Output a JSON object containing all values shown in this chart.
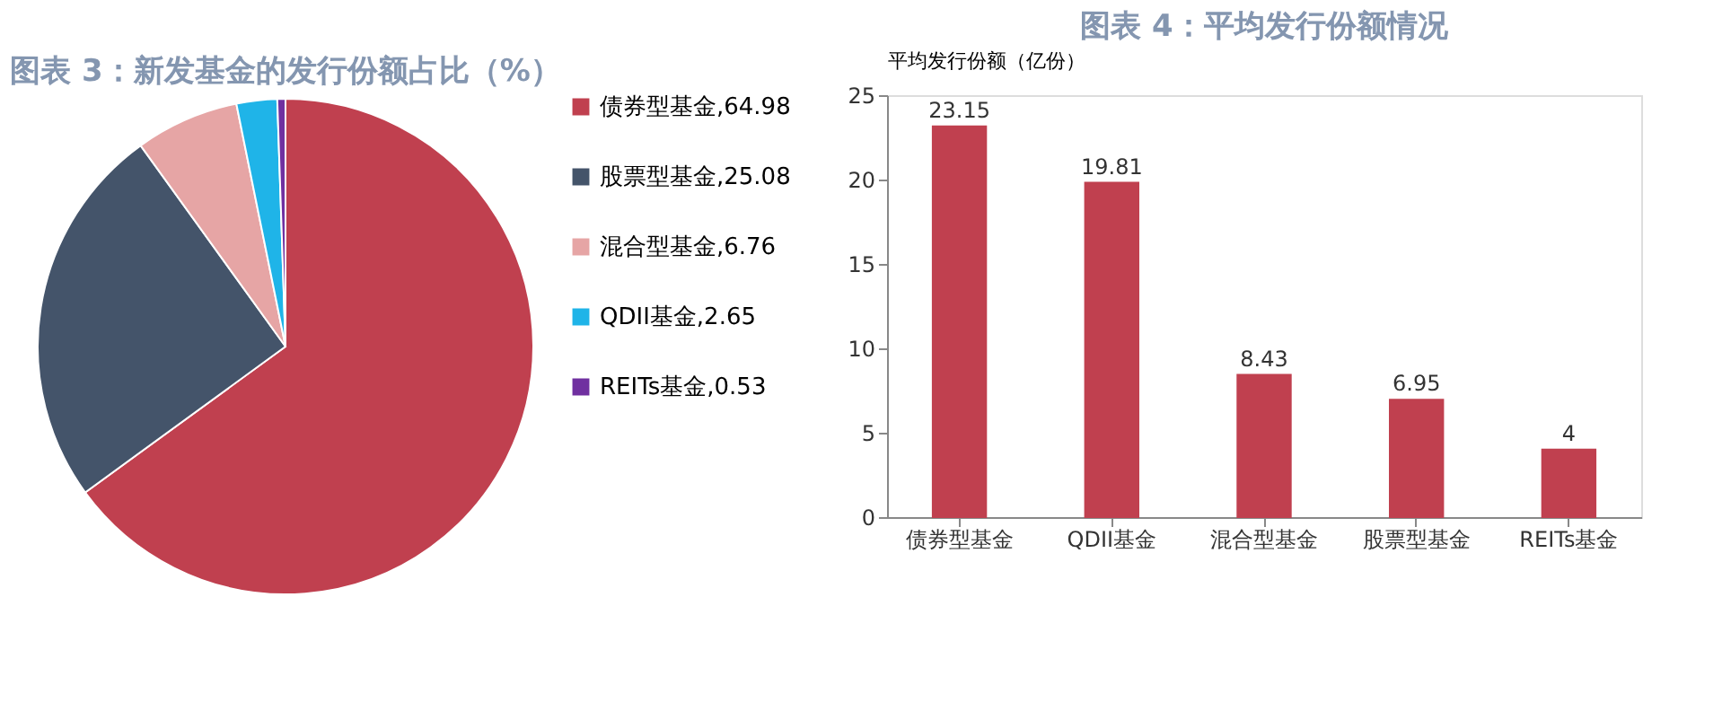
{
  "chart_data": [
    {
      "type": "pie",
      "title": "图表 3：新发基金的发行份额占比（%）",
      "categories": [
        "债券型基金,64.98",
        "股票型基金,25.08",
        "混合型基金,6.76",
        "QDII基金,2.65",
        "REITs基金,0.53"
      ],
      "values": [
        64.98,
        25.08,
        6.76,
        2.65,
        0.53
      ],
      "colors": [
        "#c0404f",
        "#44546a",
        "#e6a5a5",
        "#1fb4e8",
        "#7030a0"
      ],
      "legend": "right"
    },
    {
      "type": "bar",
      "title": "图表 4：平均发行份额情况",
      "ylabel": "平均发行份额（亿份）",
      "categories": [
        "债券型基金",
        "QDII基金",
        "混合型基金",
        "股票型基金",
        "REITs基金"
      ],
      "values": [
        23.15,
        19.81,
        8.43,
        6.95,
        4
      ],
      "color": "#c0404f",
      "ylim": [
        0,
        25
      ],
      "yticks": [
        0,
        5,
        10,
        15,
        20,
        25
      ],
      "grid": false,
      "data_labels": true
    }
  ]
}
